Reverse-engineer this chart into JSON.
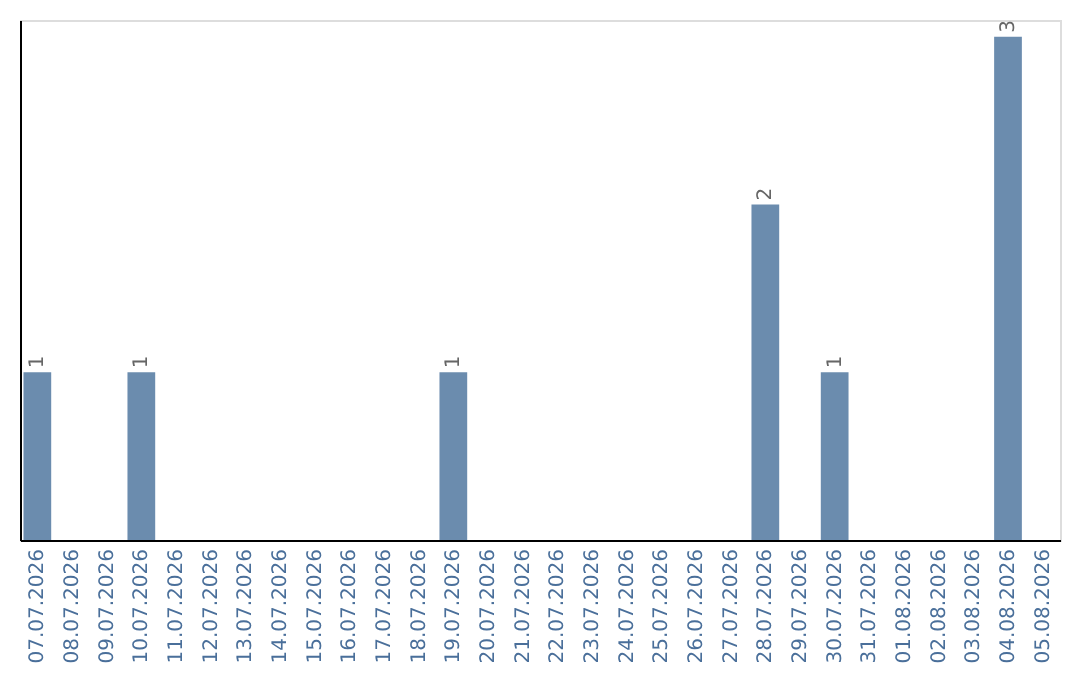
{
  "chart_data": {
    "type": "bar",
    "categories": [
      "07.07.2026",
      "08.07.2026",
      "09.07.2026",
      "10.07.2026",
      "11.07.2026",
      "12.07.2026",
      "13.07.2026",
      "14.07.2026",
      "15.07.2026",
      "16.07.2026",
      "17.07.2026",
      "18.07.2026",
      "19.07.2026",
      "20.07.2026",
      "21.07.2026",
      "22.07.2026",
      "23.07.2026",
      "24.07.2026",
      "25.07.2026",
      "26.07.2026",
      "27.07.2026",
      "28.07.2026",
      "29.07.2026",
      "30.07.2026",
      "31.07.2026",
      "01.08.2026",
      "02.08.2026",
      "03.08.2026",
      "04.08.2026",
      "05.08.2026"
    ],
    "values": [
      1,
      0,
      0,
      1,
      0,
      0,
      0,
      0,
      0,
      0,
      0,
      0,
      1,
      0,
      0,
      0,
      0,
      0,
      0,
      0,
      0,
      2,
      0,
      1,
      0,
      0,
      0,
      0,
      3,
      0
    ],
    "value_labels": [
      "1",
      null,
      null,
      "1",
      null,
      null,
      null,
      null,
      null,
      null,
      null,
      null,
      "1",
      null,
      null,
      null,
      null,
      null,
      null,
      null,
      null,
      "2",
      null,
      "1",
      null,
      null,
      null,
      null,
      "3",
      null
    ],
    "color": "#6b8cae",
    "ylim": [
      0,
      3.1
    ],
    "tick_labels": "x",
    "grid": false
  }
}
